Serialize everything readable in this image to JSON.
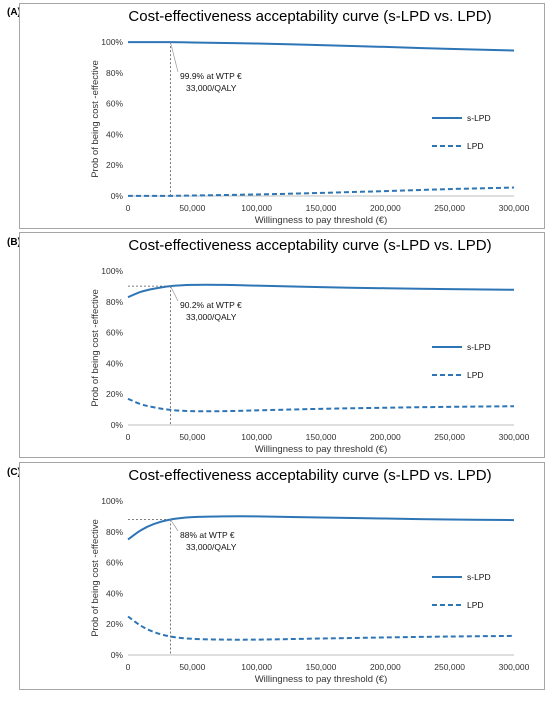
{
  "chart_data": [
    {
      "panel": "(A)",
      "type": "line",
      "title": "Cost-effectiveness acceptability curve (s-LPD vs. LPD)",
      "xlabel": "Willingness to pay threshold (€)",
      "ylabel": "Prob of being cost -effective",
      "xlim": [
        0,
        300000
      ],
      "ylim": [
        0,
        100
      ],
      "x_ticks": [
        "0",
        "50,000",
        "100,000",
        "150,000",
        "200,000",
        "250,000",
        "300,000"
      ],
      "y_ticks": [
        "0%",
        "20%",
        "40%",
        "60%",
        "80%",
        "100%"
      ],
      "grid": false,
      "legend_position": "right",
      "annotation": {
        "line1": "99.9% at WTP €",
        "line2": "33,000/QALY",
        "x": 33000,
        "y": 99.9
      },
      "series": [
        {
          "name": "s-LPD",
          "style": "solid",
          "color": "#2e75b6",
          "x": [
            0,
            33000,
            50000,
            100000,
            150000,
            200000,
            250000,
            300000
          ],
          "y": [
            99.9,
            99.9,
            99.7,
            99.0,
            98.0,
            96.8,
            95.5,
            94.5
          ]
        },
        {
          "name": "LPD",
          "style": "dashed",
          "color": "#2e75b6",
          "x": [
            0,
            33000,
            50000,
            100000,
            150000,
            200000,
            250000,
            300000
          ],
          "y": [
            0.1,
            0.1,
            0.3,
            1.0,
            2.0,
            3.2,
            4.5,
            5.5
          ]
        }
      ]
    },
    {
      "panel": "(B)",
      "type": "line",
      "title": "Cost-effectiveness acceptability curve (s-LPD vs. LPD)",
      "xlabel": "Willingness to pay threshold (€)",
      "ylabel": "Prob of being cost -effective",
      "xlim": [
        0,
        300000
      ],
      "ylim": [
        0,
        100
      ],
      "x_ticks": [
        "0",
        "50,000",
        "100,000",
        "150,000",
        "200,000",
        "250,000",
        "300,000"
      ],
      "y_ticks": [
        "0%",
        "20%",
        "40%",
        "60%",
        "80%",
        "100%"
      ],
      "grid": false,
      "legend_position": "right",
      "annotation": {
        "line1": "90.2% at WTP €",
        "line2": "33,000/QALY",
        "x": 33000,
        "y": 90.2
      },
      "series": [
        {
          "name": "s-LPD",
          "style": "solid",
          "color": "#2e75b6",
          "x": [
            0,
            10000,
            20000,
            33000,
            50000,
            75000,
            100000,
            150000,
            200000,
            250000,
            300000
          ],
          "y": [
            83.0,
            86.5,
            88.5,
            90.2,
            91.0,
            91.0,
            90.5,
            89.5,
            88.8,
            88.2,
            87.8
          ]
        },
        {
          "name": "LPD",
          "style": "dashed",
          "color": "#2e75b6",
          "x": [
            0,
            10000,
            20000,
            33000,
            50000,
            75000,
            100000,
            150000,
            200000,
            250000,
            300000
          ],
          "y": [
            17.0,
            13.5,
            11.5,
            9.8,
            9.0,
            9.0,
            9.5,
            10.5,
            11.2,
            11.8,
            12.2
          ]
        }
      ]
    },
    {
      "panel": "(C)",
      "type": "line",
      "title": "Cost-effectiveness acceptability curve (s-LPD vs. LPD)",
      "xlabel": "Willingness to pay threshold (€)",
      "ylabel": "Prob of being cost -effective",
      "xlim": [
        0,
        300000
      ],
      "ylim": [
        0,
        100
      ],
      "x_ticks": [
        "0",
        "50,000",
        "100,000",
        "150,000",
        "200,000",
        "250,000",
        "300,000"
      ],
      "y_ticks": [
        "0%",
        "20%",
        "40%",
        "60%",
        "80%",
        "100%"
      ],
      "grid": false,
      "legend_position": "right",
      "annotation": {
        "line1": "88% at WTP €",
        "line2": "33,000/QALY",
        "x": 33000,
        "y": 88.0
      },
      "series": [
        {
          "name": "s-LPD",
          "style": "solid",
          "color": "#2e75b6",
          "x": [
            0,
            10000,
            20000,
            33000,
            50000,
            75000,
            100000,
            150000,
            200000,
            250000,
            300000
          ],
          "y": [
            75.0,
            81.0,
            85.0,
            88.0,
            89.5,
            90.0,
            90.0,
            89.3,
            88.6,
            88.0,
            87.6
          ]
        },
        {
          "name": "LPD",
          "style": "dashed",
          "color": "#2e75b6",
          "x": [
            0,
            10000,
            20000,
            33000,
            50000,
            75000,
            100000,
            150000,
            200000,
            250000,
            300000
          ],
          "y": [
            25.0,
            19.0,
            15.0,
            12.0,
            10.5,
            10.0,
            10.0,
            10.7,
            11.4,
            12.0,
            12.4
          ]
        }
      ]
    }
  ]
}
